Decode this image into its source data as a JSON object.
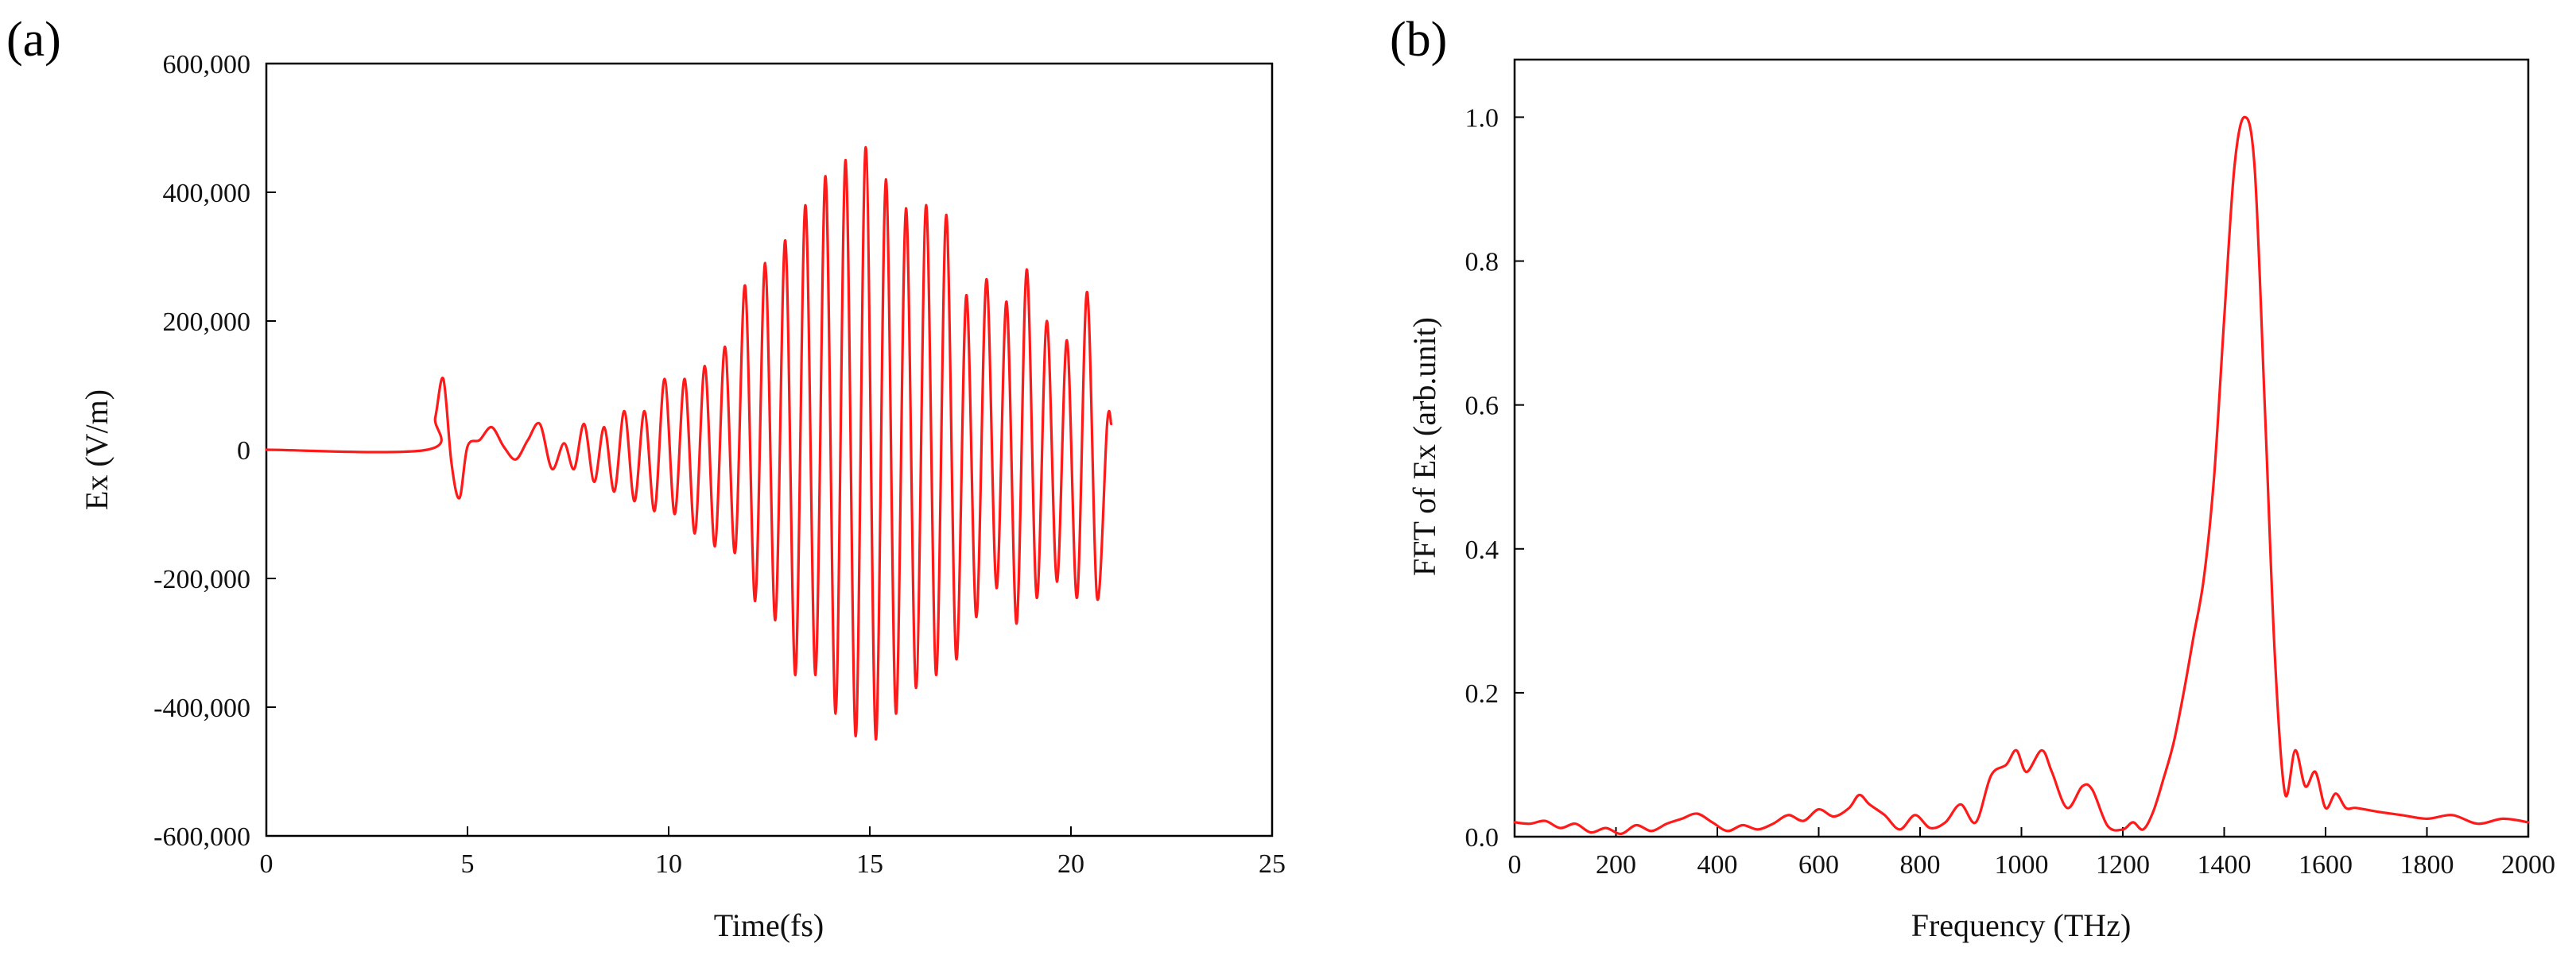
{
  "chart_data": [
    {
      "panel_label": "(a)",
      "type": "line",
      "title": "",
      "xlabel": "Time(fs)",
      "ylabel": "Ex (V/m)",
      "xlim": [
        0,
        25
      ],
      "ylim": [
        -600000,
        600000
      ],
      "xticks": [
        0,
        5,
        10,
        15,
        20,
        25
      ],
      "yticks": [
        -600000,
        -400000,
        -200000,
        0,
        200000,
        400000,
        600000
      ],
      "xtick_labels": [
        "0",
        "5",
        "10",
        "15",
        "20",
        "25"
      ],
      "ytick_labels": [
        "-600,000",
        "-400,000",
        "-200,000",
        "0",
        "200,000",
        "400,000",
        "600,000"
      ],
      "grid": false,
      "color": "#ff1a1a",
      "series": [
        {
          "name": "Ex",
          "x": [
            0,
            4.0,
            4.2,
            4.4,
            4.6,
            4.8,
            5.0,
            5.3,
            5.6,
            5.9,
            6.2,
            6.5,
            6.8,
            7.1,
            7.4,
            7.65,
            7.9,
            8.15,
            8.4,
            8.65,
            8.9,
            9.15,
            9.4,
            9.65,
            9.9,
            10.15,
            10.4,
            10.65,
            10.9,
            11.15,
            11.4,
            11.65,
            11.9,
            12.15,
            12.4,
            12.65,
            12.9,
            13.15,
            13.4,
            13.65,
            13.9,
            14.15,
            14.4,
            14.65,
            14.9,
            15.15,
            15.4,
            15.65,
            15.9,
            16.15,
            16.4,
            16.65,
            16.9,
            17.15,
            17.4,
            17.65,
            17.9,
            18.15,
            18.4,
            18.65,
            18.9,
            19.15,
            19.4,
            19.65,
            19.9,
            20.15,
            20.4,
            20.65,
            20.9,
            21.0
          ],
          "y": [
            0,
            0,
            50000,
            110000,
            -20000,
            -75000,
            5000,
            15000,
            35000,
            5000,
            -15000,
            15000,
            40000,
            -30000,
            10000,
            -30000,
            40000,
            -50000,
            35000,
            -65000,
            60000,
            -80000,
            60000,
            -95000,
            110000,
            -100000,
            110000,
            -130000,
            130000,
            -150000,
            160000,
            -160000,
            255000,
            -235000,
            290000,
            -265000,
            325000,
            -350000,
            380000,
            -350000,
            425000,
            -410000,
            450000,
            -445000,
            470000,
            -450000,
            420000,
            -410000,
            375000,
            -370000,
            380000,
            -350000,
            365000,
            -325000,
            240000,
            -260000,
            265000,
            -215000,
            230000,
            -270000,
            280000,
            -230000,
            200000,
            -205000,
            170000,
            -230000,
            245000,
            -230000,
            40000,
            40000
          ]
        }
      ]
    },
    {
      "panel_label": "(b)",
      "type": "line",
      "title": "",
      "xlabel": "Frequency (THz)",
      "ylabel": "FFT of Ex (arb.unit)",
      "xlim": [
        0,
        2000
      ],
      "ylim": [
        0,
        1.08
      ],
      "xticks": [
        0,
        200,
        400,
        600,
        800,
        1000,
        1200,
        1400,
        1600,
        1800,
        2000
      ],
      "yticks": [
        0.0,
        0.2,
        0.4,
        0.6,
        0.8,
        1.0
      ],
      "xtick_labels": [
        "0",
        "200",
        "400",
        "600",
        "800",
        "1000",
        "1200",
        "1400",
        "1600",
        "1800",
        "2000"
      ],
      "ytick_labels": [
        "0.0",
        "0.2",
        "0.4",
        "0.6",
        "0.8",
        "1.0"
      ],
      "grid": false,
      "color": "#ff1a1a",
      "series": [
        {
          "name": "FFT of Ex",
          "x": [
            0,
            30,
            60,
            90,
            120,
            150,
            180,
            210,
            240,
            270,
            300,
            330,
            360,
            390,
            420,
            450,
            480,
            510,
            540,
            570,
            600,
            630,
            660,
            680,
            700,
            730,
            760,
            790,
            820,
            850,
            880,
            910,
            940,
            970,
            990,
            1010,
            1040,
            1060,
            1090,
            1120,
            1140,
            1170,
            1200,
            1220,
            1240,
            1260,
            1280,
            1300,
            1320,
            1340,
            1360,
            1380,
            1400,
            1420,
            1440,
            1460,
            1480,
            1500,
            1520,
            1540,
            1560,
            1580,
            1600,
            1620,
            1640,
            1660,
            1700,
            1750,
            1800,
            1850,
            1900,
            1950,
            2000
          ],
          "y": [
            0.02,
            0.018,
            0.022,
            0.012,
            0.018,
            0.006,
            0.012,
            0.004,
            0.016,
            0.008,
            0.018,
            0.025,
            0.032,
            0.02,
            0.008,
            0.016,
            0.01,
            0.018,
            0.03,
            0.022,
            0.038,
            0.028,
            0.04,
            0.058,
            0.045,
            0.03,
            0.01,
            0.03,
            0.012,
            0.02,
            0.045,
            0.02,
            0.085,
            0.1,
            0.12,
            0.09,
            0.12,
            0.09,
            0.04,
            0.07,
            0.065,
            0.015,
            0.01,
            0.02,
            0.01,
            0.035,
            0.08,
            0.13,
            0.2,
            0.28,
            0.36,
            0.5,
            0.72,
            0.93,
            1.0,
            0.93,
            0.6,
            0.25,
            0.06,
            0.12,
            0.07,
            0.09,
            0.04,
            0.06,
            0.04,
            0.04,
            0.035,
            0.03,
            0.025,
            0.03,
            0.018,
            0.025,
            0.02
          ]
        }
      ]
    }
  ]
}
